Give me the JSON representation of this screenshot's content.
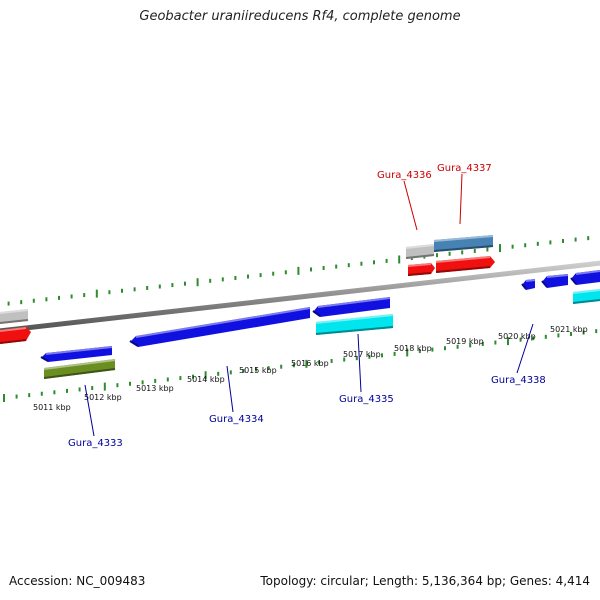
{
  "title": "Geobacter uraniireducens Rf4, complete genome",
  "footer": {
    "accession": "Accession: NC_009483",
    "summary": "Topology: circular; Length: 5,136,364 bp; Genes: 4,414"
  },
  "colors": {
    "backbone": "#8c8c8c",
    "ruler": "#2e8b2e",
    "forward_label": "#cc0000",
    "reverse_label": "#00009a",
    "blue_gene": "#1010e0",
    "red_gene": "#f01010",
    "grey_gene": "#c0c0c0",
    "steel_gene": "#4682b4",
    "cyan_gene": "#00e5ee",
    "olive_gene": "#6b8e23"
  },
  "kbp_ticks": [
    "5011 kbp",
    "5012 kbp",
    "5013 kbp",
    "5014 kbp",
    "5015 kbp",
    "5016 kbp",
    "5017 kbp",
    "5018 kbp",
    "5019 kbp",
    "5020 kbp",
    "5021 kbp"
  ],
  "gene_labels": [
    {
      "text": "Gura_4336",
      "strand": "forward"
    },
    {
      "text": "Gura_4337",
      "strand": "forward"
    },
    {
      "text": "Gura_4333",
      "strand": "reverse"
    },
    {
      "text": "Gura_4334",
      "strand": "reverse"
    },
    {
      "text": "Gura_4335",
      "strand": "reverse"
    },
    {
      "text": "Gura_4338",
      "strand": "reverse"
    }
  ],
  "features": [
    {
      "name": "grey-feature-left",
      "color": "grey_gene"
    },
    {
      "name": "red-gene-left",
      "color": "red_gene"
    },
    {
      "name": "grey-feature-4336",
      "color": "grey_gene"
    },
    {
      "name": "steel-feature-4337",
      "color": "steel_gene"
    },
    {
      "name": "red-gene-4336",
      "color": "red_gene"
    },
    {
      "name": "red-gene-4337",
      "color": "red_gene"
    },
    {
      "name": "blue-gene-4333",
      "color": "blue_gene"
    },
    {
      "name": "olive-feature-4333",
      "color": "olive_gene"
    },
    {
      "name": "blue-gene-4334",
      "color": "blue_gene"
    },
    {
      "name": "blue-gene-4335",
      "color": "blue_gene"
    },
    {
      "name": "cyan-feature-4335",
      "color": "cyan_gene"
    },
    {
      "name": "blue-gene-small-a",
      "color": "blue_gene"
    },
    {
      "name": "blue-gene-small-b",
      "color": "blue_gene"
    },
    {
      "name": "blue-gene-right",
      "color": "blue_gene"
    },
    {
      "name": "cyan-feature-right",
      "color": "cyan_gene"
    }
  ]
}
